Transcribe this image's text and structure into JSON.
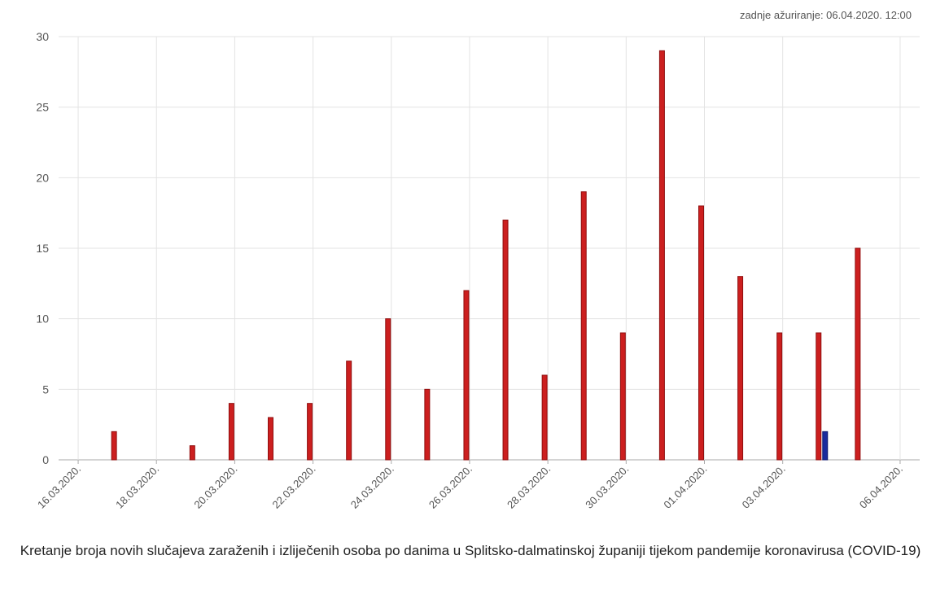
{
  "header": {
    "last_updated": "zadnje ažuriranje: 06.04.2020. 12:00"
  },
  "caption": "Kretanje broja novih slučajeva zaraženih i izliječenih osoba po danima u Splitsko-dalmatinskoj županiji tijekom pandemije koronavirusa (COVID-19)",
  "chart_data": {
    "type": "bar",
    "title": "",
    "xlabel": "",
    "ylabel": "",
    "ylim": [
      0,
      30
    ],
    "yticks": [
      0,
      5,
      10,
      15,
      20,
      25,
      30
    ],
    "grid": true,
    "categories": [
      "16.03.2020.",
      "17.03.2020.",
      "18.03.2020.",
      "19.03.2020.",
      "20.03.2020.",
      "21.03.2020.",
      "22.03.2020.",
      "23.03.2020.",
      "24.03.2020.",
      "25.03.2020.",
      "26.03.2020.",
      "27.03.2020.",
      "28.03.2020.",
      "29.03.2020.",
      "30.03.2020.",
      "31.03.2020.",
      "01.04.2020.",
      "02.04.2020.",
      "03.04.2020.",
      "04.04.2020.",
      "05.04.2020.",
      "06.04.2020."
    ],
    "xtick_labels": [
      "16.03.2020.",
      "18.03.2020.",
      "20.03.2020.",
      "22.03.2020.",
      "24.03.2020.",
      "26.03.2020.",
      "28.03.2020.",
      "30.03.2020.",
      "01.04.2020.",
      "03.04.2020.",
      "06.04.2020."
    ],
    "series": [
      {
        "color": "#cc1f1f",
        "values": [
          0,
          2,
          0,
          1,
          4,
          3,
          4,
          7,
          10,
          5,
          12,
          17,
          6,
          19,
          9,
          29,
          18,
          13,
          9,
          9,
          15,
          0
        ]
      },
      {
        "color": "#1a2a9c",
        "values": [
          0,
          0,
          0,
          0,
          0,
          0,
          0,
          0,
          0,
          0,
          0,
          0,
          0,
          0,
          0,
          0,
          0,
          0,
          0,
          2,
          0,
          0
        ]
      }
    ]
  }
}
